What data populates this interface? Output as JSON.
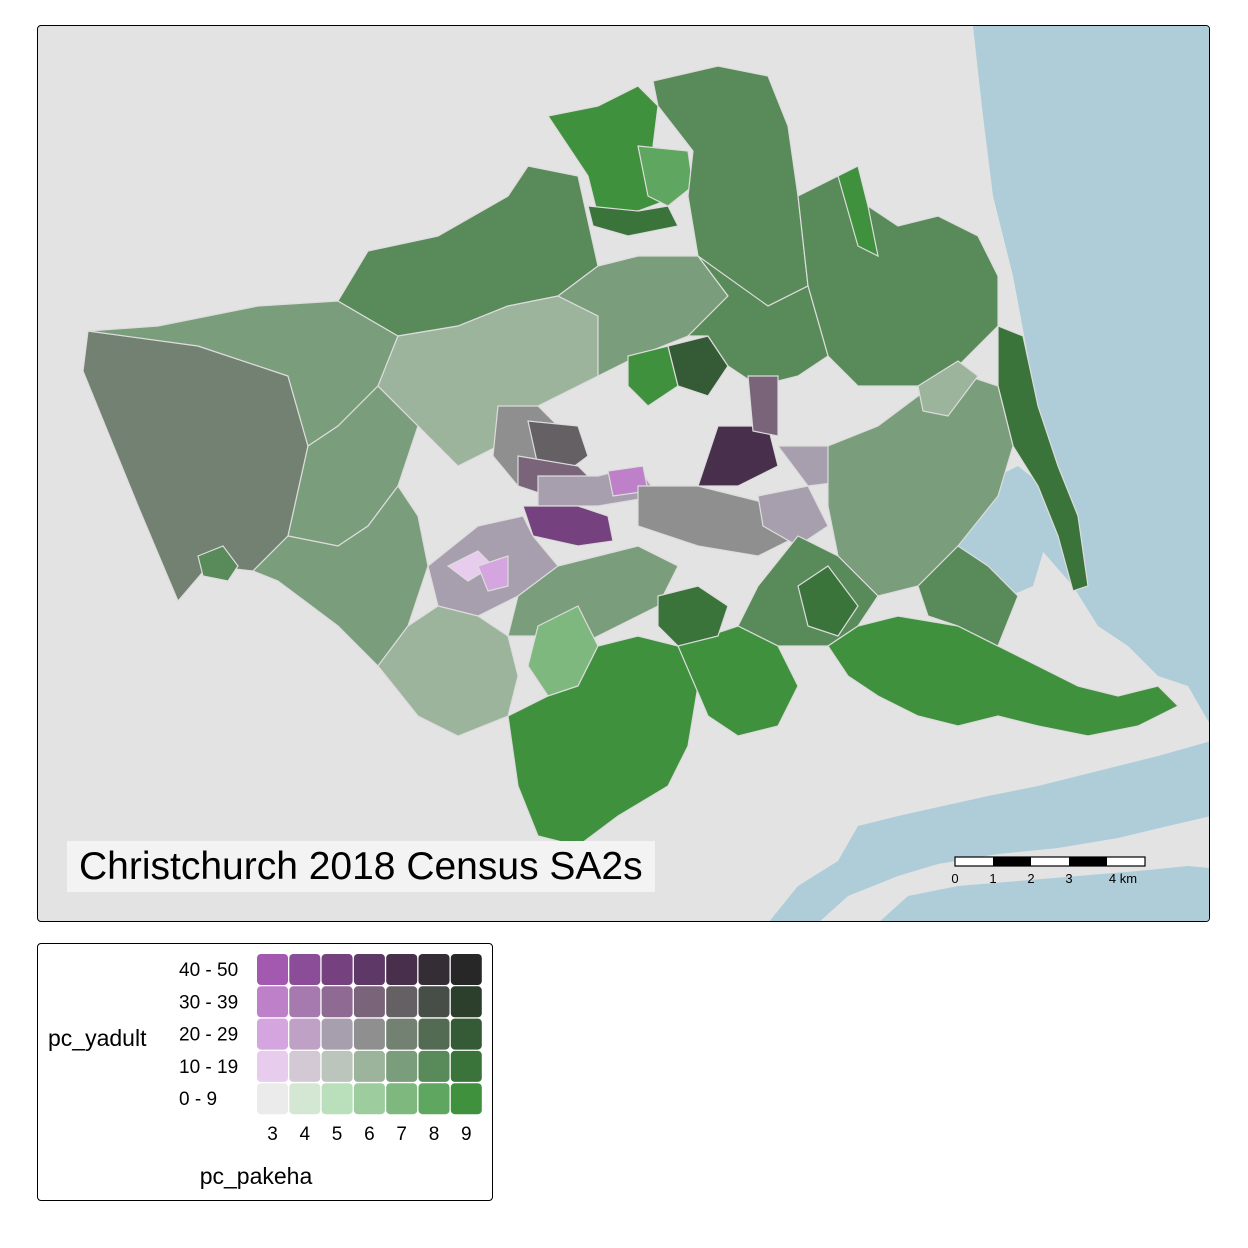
{
  "map": {
    "title": "Christchurch 2018 Census SA2s",
    "colors": {
      "background": "#e3e3e3",
      "water": "#aecdd8",
      "border": "#dcdcdc"
    },
    "scale_bar": {
      "labels": [
        "0",
        "1",
        "2",
        "3",
        "4 km"
      ]
    }
  },
  "legend": {
    "y_title": "pc_yadult",
    "x_title": "pc_pakeha",
    "y_classes": [
      "40 - 50",
      "30 - 39",
      "20 - 29",
      "10 - 19",
      "0 - 9"
    ],
    "x_classes": [
      "3",
      "4",
      "5",
      "6",
      "7",
      "8",
      "9"
    ],
    "palette": [
      [
        "#a359b0",
        "#8c4d98",
        "#75427f",
        "#5e3866",
        "#48304d",
        "#352d36",
        "#272727"
      ],
      [
        "#bd80c9",
        "#a67aae",
        "#8f6a93",
        "#79647a",
        "#656063",
        "#474d47",
        "#2c3f2d"
      ],
      [
        "#d4a5de",
        "#bfa1c6",
        "#a89fae",
        "#8f8f8f",
        "#728171",
        "#536a53",
        "#355a36"
      ],
      [
        "#e8cced",
        "#d3c9d5",
        "#bcc5bb",
        "#9cb39c",
        "#7a9d7b",
        "#598a59",
        "#3a743b"
      ],
      [
        "#ebebeb",
        "#d3e7d3",
        "#b9e0ba",
        "#9dcd9e",
        "#7fb87f",
        "#5fa660",
        "#3f913e"
      ]
    ]
  }
}
